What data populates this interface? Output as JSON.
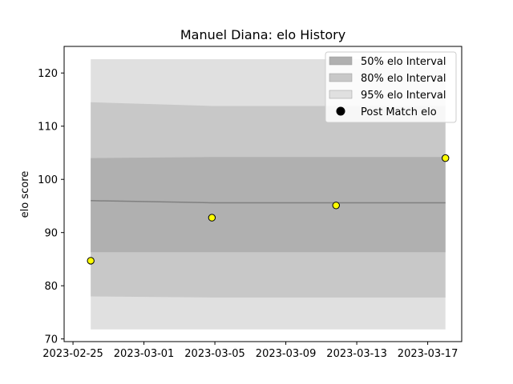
{
  "chart_data": {
    "type": "line",
    "title": "Manuel Diana: elo History",
    "xlabel": "",
    "ylabel": "elo score",
    "x_ticks": [
      "2023-02-25",
      "2023-03-01",
      "2023-03-05",
      "2023-03-09",
      "2023-03-13",
      "2023-03-17"
    ],
    "xlim": [
      "2023-02-24T12:00",
      "2023-03-18T22:00"
    ],
    "y_ticks": [
      70,
      80,
      90,
      100,
      110,
      120
    ],
    "ylim": [
      69.5,
      125
    ],
    "grid": false,
    "legend_position": "top-right",
    "legend": [
      {
        "label": "50% elo Interval",
        "kind": "band",
        "color": "#b0b0b0"
      },
      {
        "label": "80% elo Interval",
        "kind": "band",
        "color": "#c8c8c8"
      },
      {
        "label": "95% elo Interval",
        "kind": "band",
        "color": "#e0e0e0"
      },
      {
        "label": "Post Match elo",
        "kind": "point",
        "color": "#000000"
      }
    ],
    "x": [
      "2023-02-26",
      "2023-03-04T20:00",
      "2023-03-11T20:00",
      "2023-03-18"
    ],
    "mean": [
      96.0,
      95.6,
      95.6,
      95.6
    ],
    "band_50": {
      "lower": [
        86.3,
        86.3,
        86.3,
        86.3
      ],
      "upper": [
        104.0,
        104.2,
        104.2,
        104.2
      ]
    },
    "band_80": {
      "lower": [
        78.0,
        77.8,
        77.8,
        77.8
      ],
      "upper": [
        114.5,
        113.8,
        113.8,
        113.8
      ]
    },
    "band_95": {
      "lower": [
        71.8,
        71.8,
        71.8,
        71.8
      ],
      "upper": [
        122.6,
        122.6,
        122.6,
        122.6
      ]
    },
    "points": [
      {
        "x": "2023-02-26",
        "y": 84.7
      },
      {
        "x": "2023-03-04T20:00",
        "y": 92.8
      },
      {
        "x": "2023-03-11T20:00",
        "y": 95.1
      },
      {
        "x": "2023-03-18",
        "y": 104.0
      }
    ],
    "colors": {
      "band_50": "#b0b0b0",
      "band_80": "#c8c8c8",
      "band_95": "#e0e0e0",
      "mean_line": "#808080",
      "point_fill": "#ffff00",
      "point_edge": "#000000"
    }
  }
}
